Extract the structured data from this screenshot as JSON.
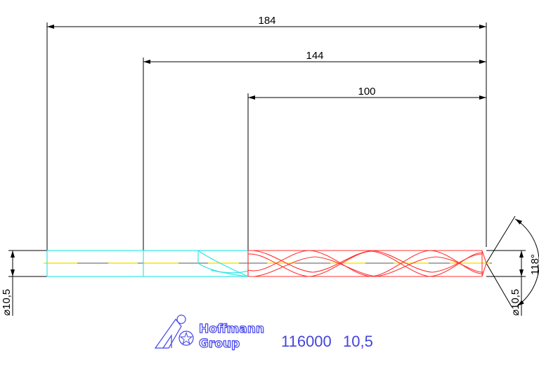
{
  "drawing": {
    "dimensions": {
      "overall_length": "184",
      "shank_to_tip": "144",
      "flute_length": "100",
      "diameter_left": "⌀10,5",
      "diameter_right": "⌀10,5",
      "point_angle": "118°"
    },
    "colors": {
      "shank": "#33e6e6",
      "flute": "#ff3333",
      "centerline": "#f5e600",
      "dimension": "#000000",
      "logo": "#4444ee"
    }
  },
  "title_block": {
    "logo_line1": "Hoffmann",
    "logo_line2": "Group",
    "article_number": "116000",
    "size": "10,5"
  }
}
